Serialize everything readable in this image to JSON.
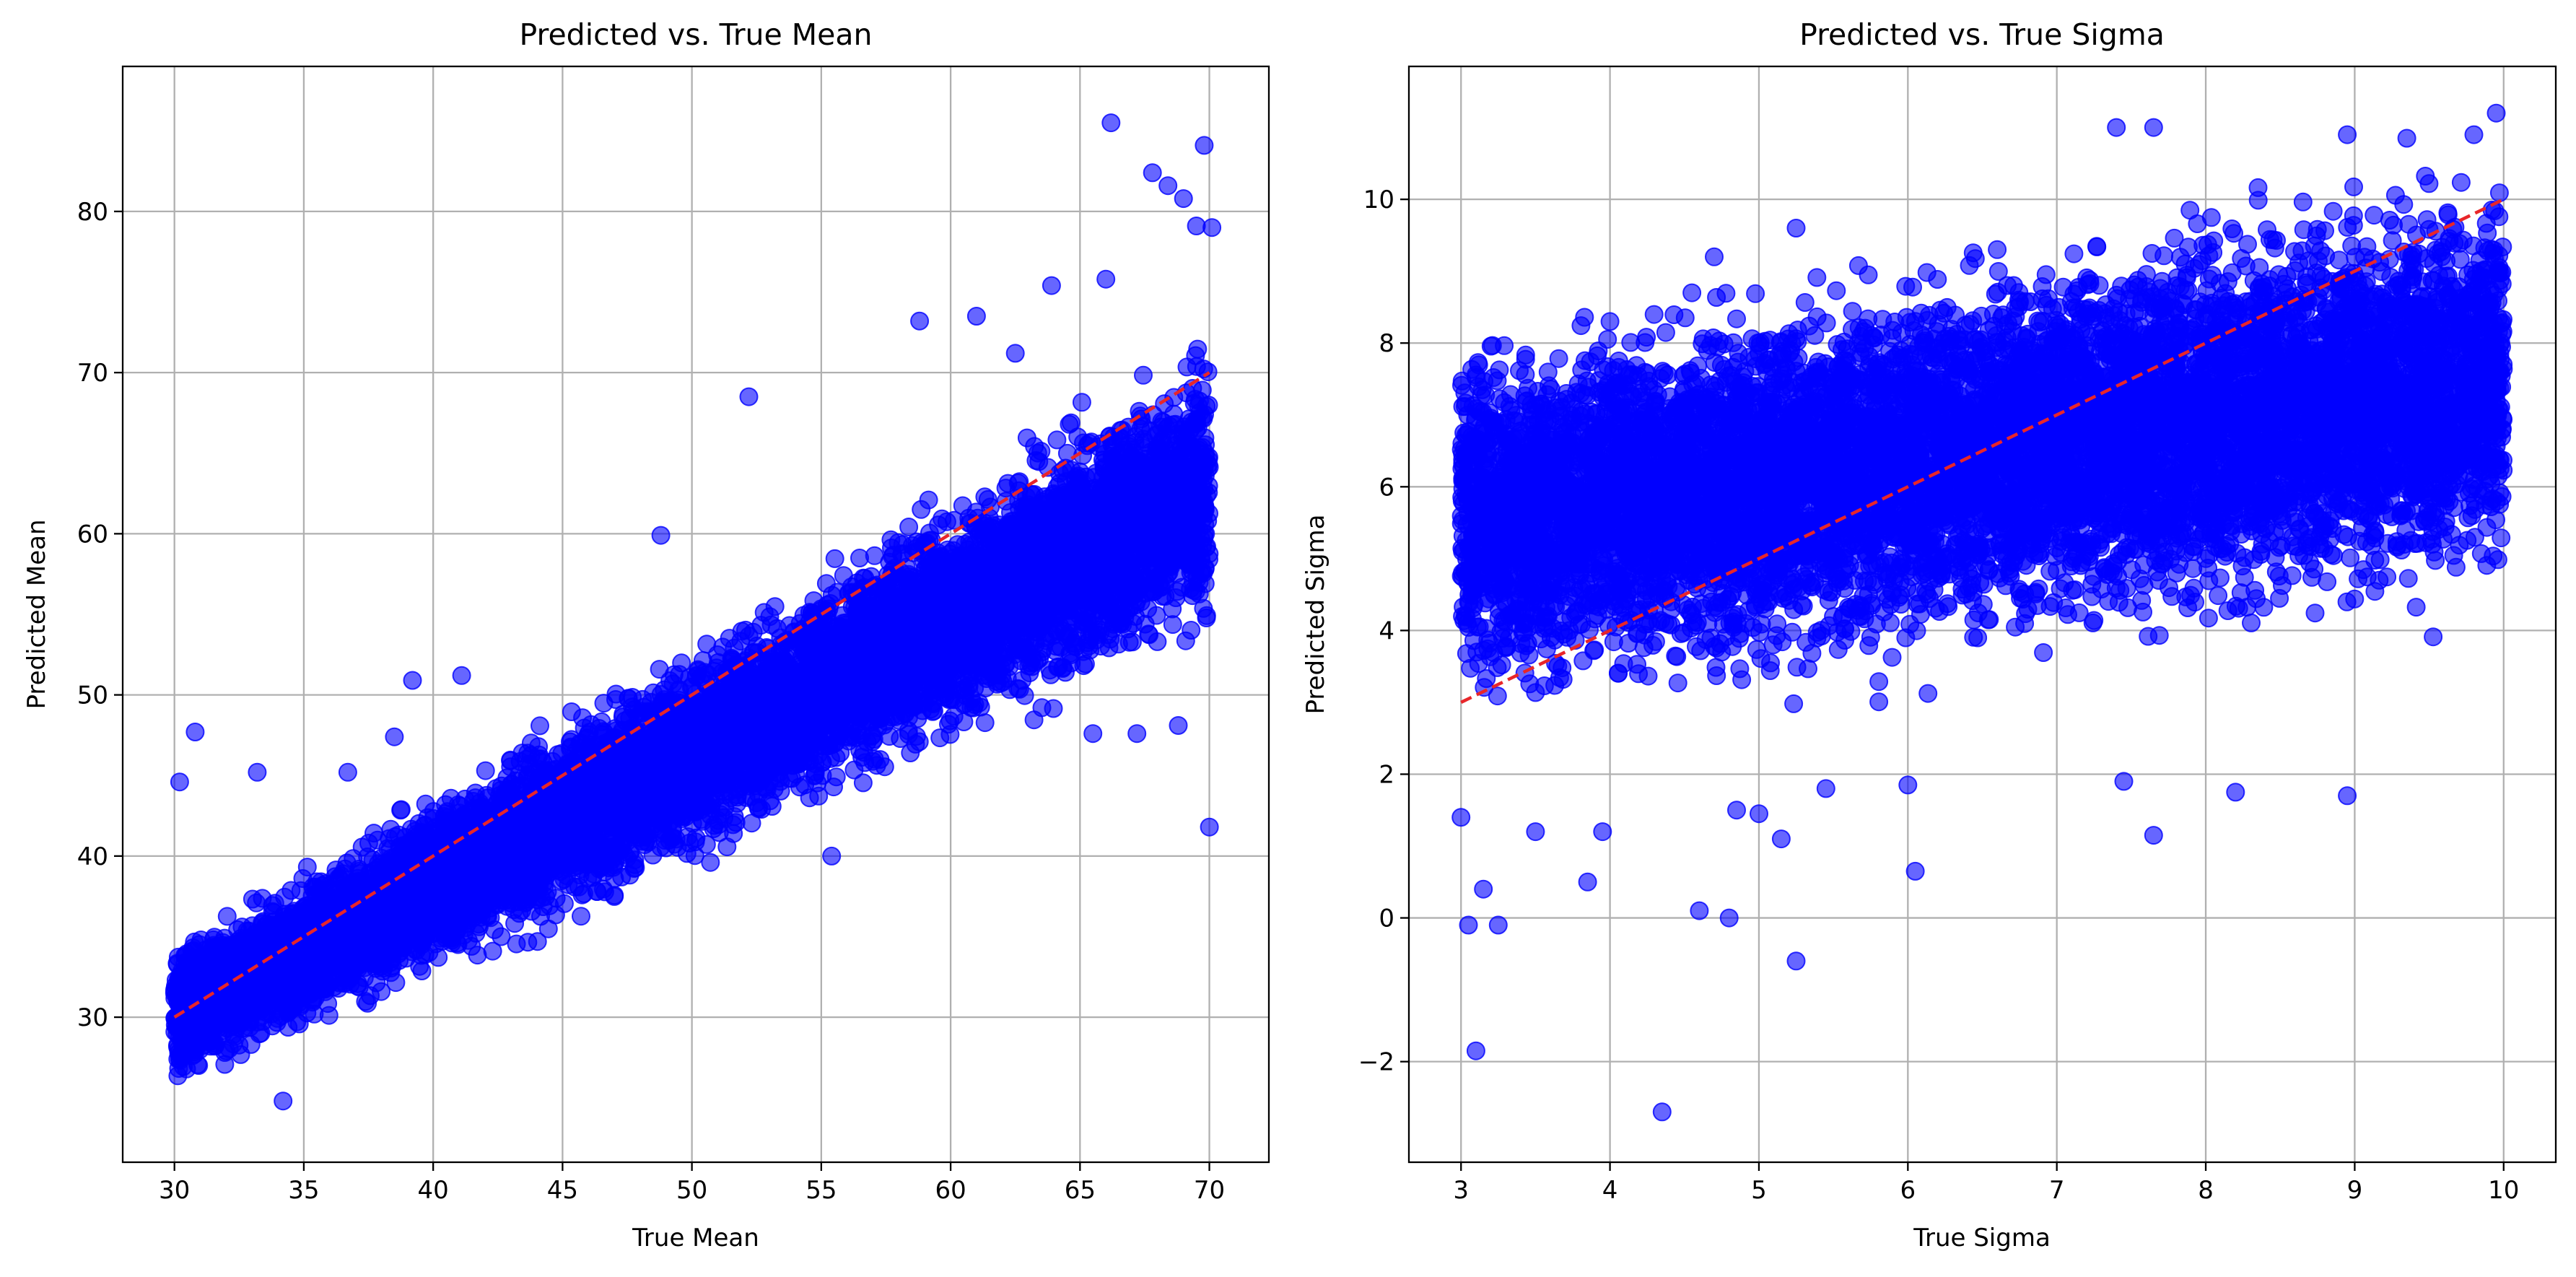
{
  "colors": {
    "points": "#0000ff",
    "identity_line": "#e8262a",
    "grid": "#b0b0b0"
  },
  "chart_data": [
    {
      "type": "scatter",
      "title": "Predicted vs. True Mean",
      "xlabel": "True Mean",
      "ylabel": "Predicted Mean",
      "xlim": [
        28,
        72.3
      ],
      "ylim": [
        21,
        89
      ],
      "xticks": [
        30,
        35,
        40,
        45,
        50,
        55,
        60,
        65,
        70
      ],
      "yticks": [
        30,
        40,
        50,
        60,
        70,
        80
      ],
      "grid": true,
      "identity_line": [
        [
          30,
          30
        ],
        [
          70,
          70
        ]
      ],
      "band": {
        "x_range": [
          30,
          70
        ],
        "center_slope": 0.82,
        "center_intercept": 5.4,
        "spread_start": 2.4,
        "spread_end": 4.6
      },
      "outliers": [
        [
          66.2,
          85.5
        ],
        [
          69.8,
          84.1
        ],
        [
          67.8,
          82.4
        ],
        [
          68.4,
          81.6
        ],
        [
          69.0,
          80.8
        ],
        [
          69.5,
          79.1
        ],
        [
          70.1,
          79.0
        ],
        [
          70.0,
          41.8
        ],
        [
          30.8,
          47.7
        ],
        [
          30.2,
          44.6
        ],
        [
          33.2,
          45.2
        ],
        [
          34.2,
          24.8
        ],
        [
          36.7,
          45.2
        ],
        [
          38.5,
          47.4
        ],
        [
          39.2,
          50.9
        ],
        [
          41.1,
          51.2
        ],
        [
          42.3,
          34.1
        ],
        [
          48.8,
          59.9
        ],
        [
          52.2,
          68.5
        ],
        [
          55.4,
          40.0
        ],
        [
          58.8,
          73.2
        ],
        [
          61.0,
          73.5
        ],
        [
          62.5,
          71.2
        ],
        [
          63.9,
          75.4
        ],
        [
          65.5,
          47.6
        ],
        [
          66.0,
          75.8
        ],
        [
          67.2,
          47.6
        ],
        [
          68.8,
          48.1
        ]
      ]
    },
    {
      "type": "scatter",
      "title": "Predicted vs. True Sigma",
      "xlabel": "True Sigma",
      "ylabel": "Predicted Sigma",
      "xlim": [
        2.65,
        10.35
      ],
      "ylim": [
        -3.4,
        11.85
      ],
      "xticks": [
        3,
        4,
        5,
        6,
        7,
        8,
        9,
        10
      ],
      "yticks": [
        -2,
        0,
        2,
        4,
        6,
        8,
        10
      ],
      "grid": true,
      "identity_line": [
        [
          3,
          3
        ],
        [
          10,
          10
        ]
      ],
      "band": {
        "x_range": [
          3,
          10
        ],
        "center_slope": 0.28,
        "center_intercept": 4.65,
        "spread_start": 1.35,
        "spread_end": 1.55
      },
      "outliers": [
        [
          3.1,
          -1.85
        ],
        [
          4.35,
          -2.7
        ],
        [
          3.05,
          -0.1
        ],
        [
          3.25,
          -0.1
        ],
        [
          3.15,
          0.4
        ],
        [
          3.85,
          0.5
        ],
        [
          4.6,
          0.1
        ],
        [
          4.8,
          0.0
        ],
        [
          5.25,
          -0.6
        ],
        [
          6.05,
          0.65
        ],
        [
          3.0,
          1.4
        ],
        [
          3.5,
          1.2
        ],
        [
          3.95,
          1.2
        ],
        [
          4.85,
          1.5
        ],
        [
          5.0,
          1.45
        ],
        [
          5.15,
          1.1
        ],
        [
          5.45,
          1.8
        ],
        [
          6.0,
          1.85
        ],
        [
          7.45,
          1.9
        ],
        [
          7.65,
          1.15
        ],
        [
          8.2,
          1.75
        ],
        [
          8.95,
          1.7
        ],
        [
          4.7,
          9.2
        ],
        [
          5.25,
          9.6
        ],
        [
          7.4,
          11.0
        ],
        [
          7.65,
          11.0
        ],
        [
          8.95,
          10.9
        ],
        [
          9.95,
          11.2
        ],
        [
          9.8,
          10.9
        ],
        [
          9.35,
          10.85
        ],
        [
          4.0,
          8.3
        ],
        [
          4.55,
          8.7
        ],
        [
          6.6,
          9.3
        ]
      ]
    }
  ]
}
